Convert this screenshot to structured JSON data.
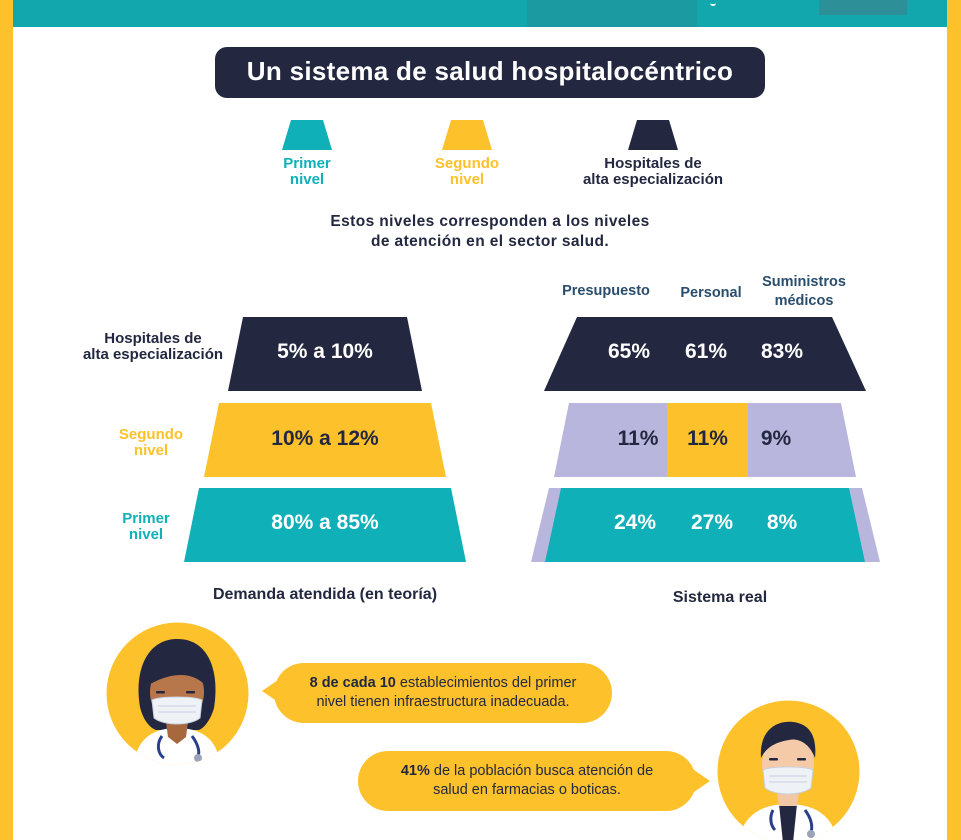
{
  "title": "Un sistema de salud hospitalocéntrico",
  "colors": {
    "primer_nivel": "#0fb0b8",
    "segundo_nivel": "#fcc12b",
    "alta_especializacion": "#232840",
    "lavender": "#b9b6de",
    "heading_blue": "#2a4d6e"
  },
  "legend": [
    {
      "line1": "Primer",
      "line2": "nivel",
      "color": "#0fb0b8"
    },
    {
      "line1": "Segundo",
      "line2": "nivel",
      "color": "#fcc12b"
    },
    {
      "line1": "Hospitales de",
      "line2": "alta especialización",
      "color": "#232840"
    }
  ],
  "description": {
    "line1": "Estos niveles corresponden a los niveles",
    "line2": "de atención en el sector salud."
  },
  "row_labels": [
    {
      "line1": "Hospitales de",
      "line2": "alta especialización"
    },
    {
      "line1": "Segundo",
      "line2": "nivel"
    },
    {
      "line1": "Primer",
      "line2": "nivel"
    }
  ],
  "demanda": {
    "caption": "Demanda atendida (en teoría)",
    "values": [
      "5% a 10%",
      "10% a 12%",
      "80% a 85%"
    ]
  },
  "sistema_real": {
    "caption": "Sistema real",
    "columns": [
      "Presupuesto",
      "Personal",
      "Suministros médicos"
    ],
    "columns_split": [
      [
        "Presupuesto"
      ],
      [
        "Personal"
      ],
      [
        "Suministros",
        "médicos"
      ]
    ],
    "rows": [
      [
        "65%",
        "61%",
        "83%"
      ],
      [
        "11%",
        "11%",
        "9%"
      ],
      [
        "24%",
        "27%",
        "8%"
      ]
    ]
  },
  "facts": [
    {
      "bold": "8 de cada 10",
      "text": " establecimientos del primer",
      "line2": "nivel tienen infraestructura inadecuada."
    },
    {
      "bold": "41%",
      "text": " de la población busca atención de",
      "line2": "salud en farmacias o boticas."
    }
  ],
  "icons": [
    "female-doctor-avatar-icon",
    "male-doctor-avatar-icon"
  ]
}
